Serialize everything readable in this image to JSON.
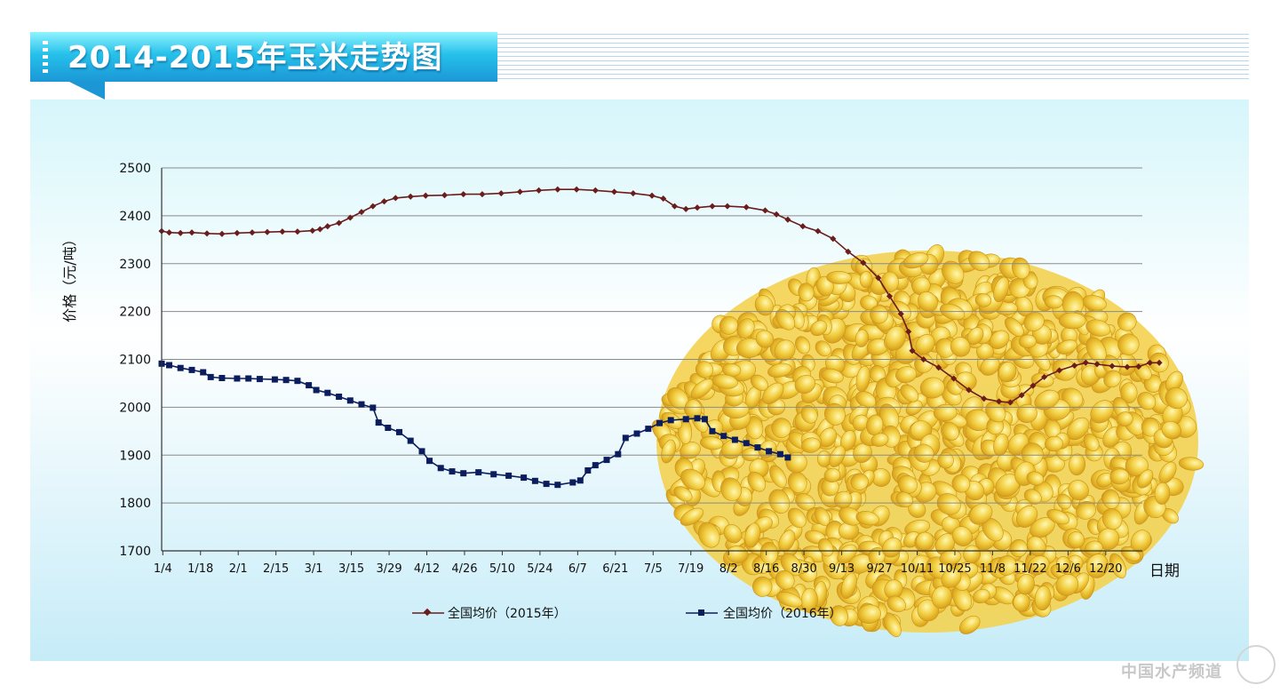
{
  "banner": {
    "title": "2014-2015年玉米走势图"
  },
  "watermark": {
    "text": "中国水产频道"
  },
  "colors": {
    "series_2015": "#6b1c1c",
    "series_2016": "#0c1d5e",
    "corn": "#f2cf42"
  },
  "chart_data": {
    "type": "line",
    "title": "",
    "xlabel": "日期",
    "ylabel": "价格（元/吨）",
    "ylim": [
      1700,
      2500
    ],
    "yticks": [
      "1700",
      "1800",
      "1900",
      "2000",
      "2100",
      "2200",
      "2300",
      "2400",
      "2500"
    ],
    "categories": [
      "1/4",
      "1/18",
      "2/1",
      "2/15",
      "3/1",
      "3/15",
      "3/29",
      "4/12",
      "4/26",
      "5/10",
      "5/24",
      "6/7",
      "6/21",
      "7/5",
      "7/19",
      "8/2",
      "8/16",
      "8/30",
      "9/13",
      "9/27",
      "10/11",
      "10/25",
      "11/8",
      "11/22",
      "12/6",
      "12/20"
    ],
    "grid": true,
    "legend": "bottom",
    "series": [
      {
        "name": "全国均价（2015年）",
        "marker": "diamond",
        "color": "#6b1c1c",
        "points": [
          [
            0,
            2368
          ],
          [
            0.2,
            2365
          ],
          [
            0.5,
            2364
          ],
          [
            0.8,
            2365
          ],
          [
            1.2,
            2363
          ],
          [
            1.6,
            2362
          ],
          [
            2.0,
            2364
          ],
          [
            2.4,
            2365
          ],
          [
            2.8,
            2366
          ],
          [
            3.2,
            2367
          ],
          [
            3.6,
            2367
          ],
          [
            4.0,
            2369
          ],
          [
            4.2,
            2372
          ],
          [
            4.4,
            2378
          ],
          [
            4.7,
            2385
          ],
          [
            5.0,
            2396
          ],
          [
            5.3,
            2408
          ],
          [
            5.6,
            2420
          ],
          [
            5.9,
            2430
          ],
          [
            6.2,
            2437
          ],
          [
            6.6,
            2440
          ],
          [
            7.0,
            2442
          ],
          [
            7.5,
            2443
          ],
          [
            8.0,
            2445
          ],
          [
            8.5,
            2445
          ],
          [
            9.0,
            2447
          ],
          [
            9.5,
            2450
          ],
          [
            10.0,
            2453
          ],
          [
            10.5,
            2455
          ],
          [
            11.0,
            2455
          ],
          [
            11.5,
            2453
          ],
          [
            12.0,
            2450
          ],
          [
            12.5,
            2447
          ],
          [
            13.0,
            2442
          ],
          [
            13.3,
            2436
          ],
          [
            13.6,
            2420
          ],
          [
            13.9,
            2414
          ],
          [
            14.2,
            2417
          ],
          [
            14.6,
            2420
          ],
          [
            15.0,
            2420
          ],
          [
            15.5,
            2418
          ],
          [
            16.0,
            2411
          ],
          [
            16.3,
            2403
          ],
          [
            16.6,
            2392
          ],
          [
            17.0,
            2378
          ],
          [
            17.4,
            2368
          ],
          [
            17.8,
            2352
          ],
          [
            18.2,
            2325
          ],
          [
            18.6,
            2302
          ],
          [
            19.0,
            2270
          ],
          [
            19.3,
            2232
          ],
          [
            19.6,
            2195
          ],
          [
            19.8,
            2158
          ],
          [
            19.9,
            2118
          ],
          [
            20.2,
            2100
          ],
          [
            20.6,
            2083
          ],
          [
            21.0,
            2060
          ],
          [
            21.4,
            2036
          ],
          [
            21.8,
            2018
          ],
          [
            22.2,
            2012
          ],
          [
            22.5,
            2010
          ],
          [
            22.8,
            2025
          ],
          [
            23.1,
            2045
          ],
          [
            23.4,
            2063
          ],
          [
            23.8,
            2077
          ],
          [
            24.2,
            2087
          ],
          [
            24.5,
            2093
          ],
          [
            24.8,
            2090
          ],
          [
            25.2,
            2086
          ],
          [
            25.6,
            2084
          ],
          [
            25.9,
            2085
          ],
          [
            26.2,
            2093
          ],
          [
            26.45,
            2093
          ]
        ]
      },
      {
        "name": "全国均价（2016年）",
        "marker": "square",
        "color": "#0c1d5e",
        "points": [
          [
            0,
            2091
          ],
          [
            0.2,
            2088
          ],
          [
            0.5,
            2082
          ],
          [
            0.8,
            2078
          ],
          [
            1.1,
            2073
          ],
          [
            1.3,
            2063
          ],
          [
            1.6,
            2061
          ],
          [
            2.0,
            2060
          ],
          [
            2.3,
            2060
          ],
          [
            2.6,
            2059
          ],
          [
            3.0,
            2058
          ],
          [
            3.3,
            2057
          ],
          [
            3.6,
            2055
          ],
          [
            3.9,
            2046
          ],
          [
            4.1,
            2036
          ],
          [
            4.4,
            2030
          ],
          [
            4.7,
            2022
          ],
          [
            5.0,
            2014
          ],
          [
            5.3,
            2006
          ],
          [
            5.6,
            1999
          ],
          [
            5.75,
            1968
          ],
          [
            6.0,
            1957
          ],
          [
            6.3,
            1948
          ],
          [
            6.6,
            1930
          ],
          [
            6.9,
            1908
          ],
          [
            7.1,
            1888
          ],
          [
            7.4,
            1873
          ],
          [
            7.7,
            1866
          ],
          [
            8.0,
            1862
          ],
          [
            8.4,
            1864
          ],
          [
            8.8,
            1860
          ],
          [
            9.2,
            1857
          ],
          [
            9.6,
            1853
          ],
          [
            9.9,
            1846
          ],
          [
            10.2,
            1840
          ],
          [
            10.5,
            1838
          ],
          [
            10.9,
            1843
          ],
          [
            11.1,
            1847
          ],
          [
            11.3,
            1868
          ],
          [
            11.5,
            1879
          ],
          [
            11.8,
            1890
          ],
          [
            12.1,
            1902
          ],
          [
            12.3,
            1936
          ],
          [
            12.6,
            1945
          ],
          [
            12.9,
            1955
          ],
          [
            13.2,
            1967
          ],
          [
            13.5,
            1973
          ],
          [
            13.9,
            1975
          ],
          [
            14.2,
            1977
          ],
          [
            14.4,
            1975
          ],
          [
            14.6,
            1950
          ],
          [
            14.9,
            1940
          ],
          [
            15.2,
            1932
          ],
          [
            15.5,
            1925
          ],
          [
            15.8,
            1916
          ],
          [
            16.1,
            1908
          ],
          [
            16.4,
            1902
          ],
          [
            16.6,
            1895
          ]
        ]
      }
    ]
  }
}
